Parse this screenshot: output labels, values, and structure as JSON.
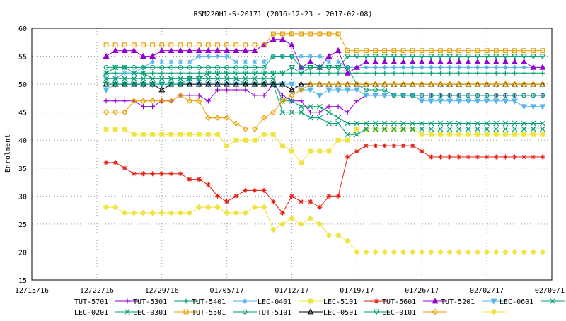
{
  "chart_data": {
    "type": "line",
    "title": "RSM220H1-S-20171 (2016-12-23 - 2017-02-08)",
    "ylabel": "Enrolment",
    "xlabel": "",
    "x_tick_labels": [
      "12/15/16",
      "12/22/16",
      "12/29/16",
      "01/05/17",
      "01/12/17",
      "01/19/17",
      "01/26/17",
      "02/02/17",
      "02/09/17"
    ],
    "xlim": [
      "2016-12-15",
      "2017-02-09"
    ],
    "ylim": [
      15,
      60
    ],
    "y_ticks": [
      15,
      20,
      25,
      30,
      35,
      40,
      45,
      50,
      55,
      60
    ],
    "grid": true,
    "legend_position": "bottom",
    "x": [
      "2016-12-23",
      "2016-12-24",
      "2016-12-25",
      "2016-12-26",
      "2016-12-27",
      "2016-12-28",
      "2016-12-29",
      "2016-12-30",
      "2016-12-31",
      "2017-01-01",
      "2017-01-02",
      "2017-01-03",
      "2017-01-04",
      "2017-01-05",
      "2017-01-06",
      "2017-01-07",
      "2017-01-08",
      "2017-01-09",
      "2017-01-10",
      "2017-01-11",
      "2017-01-12",
      "2017-01-13",
      "2017-01-14",
      "2017-01-15",
      "2017-01-16",
      "2017-01-17",
      "2017-01-18",
      "2017-01-19",
      "2017-01-20",
      "2017-01-21",
      "2017-01-22",
      "2017-01-23",
      "2017-01-24",
      "2017-01-25",
      "2017-01-26",
      "2017-01-27",
      "2017-01-28",
      "2017-01-29",
      "2017-01-30",
      "2017-01-31",
      "2017-02-01",
      "2017-02-02",
      "2017-02-03",
      "2017-02-04",
      "2017-02-05",
      "2017-02-06",
      "2017-02-07",
      "2017-02-08"
    ],
    "series": [
      {
        "name": "TUT-5701",
        "color": "#9400d3",
        "marker": "plus",
        "values": [
          47,
          47,
          47,
          47,
          46,
          46,
          47,
          47,
          48,
          48,
          48,
          47,
          49,
          49,
          49,
          49,
          48,
          48,
          50,
          48,
          47,
          47,
          45,
          45,
          46,
          46,
          45,
          47,
          48,
          48,
          48,
          48,
          48,
          48,
          48,
          48,
          48,
          48,
          48,
          48,
          48,
          48,
          48,
          48,
          48,
          48,
          48,
          48
        ]
      },
      {
        "name": "TUT-5301",
        "color": "#009e73",
        "marker": "plus",
        "values": [
          52,
          52,
          52,
          52,
          52,
          52,
          52,
          52,
          52,
          52,
          52,
          52,
          52,
          52,
          52,
          52,
          52,
          52,
          52,
          52,
          52,
          52,
          52,
          52,
          52,
          52,
          52,
          52,
          52,
          52,
          52,
          52,
          52,
          52,
          52,
          52,
          52,
          52,
          52,
          52,
          52,
          52,
          52,
          52,
          52,
          52,
          52,
          52
        ]
      },
      {
        "name": "TUT-5401",
        "color": "#56b4e9",
        "marker": "star",
        "values": [
          51,
          51,
          52,
          52,
          53,
          54,
          54,
          54,
          54,
          54,
          55,
          55,
          55,
          55,
          54,
          54,
          54,
          54,
          55,
          55,
          55,
          55,
          55,
          55,
          54,
          54,
          53,
          53,
          53,
          53,
          53,
          53,
          53,
          53,
          53,
          53,
          53,
          53,
          53,
          53,
          53,
          53,
          53,
          53,
          53,
          53,
          53,
          53
        ]
      },
      {
        "name": "LEC-0401",
        "color": "#f0e442",
        "marker": "square",
        "values": [
          42,
          42,
          42,
          41,
          41,
          41,
          41,
          41,
          41,
          41,
          41,
          41,
          41,
          39,
          40,
          40,
          40,
          41,
          41,
          39,
          38,
          36,
          38,
          38,
          38,
          40,
          40,
          42,
          42,
          42,
          42,
          42,
          42,
          42,
          41,
          41,
          41,
          41,
          41,
          41,
          41,
          41,
          41,
          41,
          41,
          41,
          41,
          41
        ]
      },
      {
        "name": "LEC-5101",
        "color": "#e51e10",
        "marker": "star",
        "values": [
          36,
          36,
          35,
          34,
          34,
          34,
          34,
          34,
          34,
          33,
          33,
          32,
          30,
          29,
          30,
          31,
          31,
          31,
          29,
          27,
          30,
          29,
          29,
          28,
          30,
          30,
          37,
          38,
          39,
          39,
          39,
          39,
          39,
          39,
          38,
          37,
          37,
          37,
          37,
          37,
          37,
          37,
          37,
          37,
          37,
          37,
          37,
          37
        ]
      },
      {
        "name": "TUT-5601",
        "color": "#9400d3",
        "marker": "triangle",
        "values": [
          55,
          56,
          56,
          56,
          55,
          55,
          56,
          56,
          56,
          56,
          56,
          56,
          56,
          56,
          56,
          56,
          56,
          57,
          58,
          58,
          57,
          53,
          54,
          53,
          55,
          56,
          52,
          53,
          54,
          54,
          54,
          54,
          54,
          54,
          54,
          54,
          54,
          54,
          54,
          54,
          54,
          54,
          54,
          54,
          54,
          54,
          53,
          53
        ]
      },
      {
        "name": "TUT-5201",
        "color": "#56b4e9",
        "marker": "triangle-down",
        "values": [
          49,
          50,
          50,
          50,
          50,
          50,
          50,
          50,
          50,
          50,
          50,
          50,
          50,
          50,
          50,
          50,
          50,
          50,
          50,
          50,
          50,
          49,
          49,
          48,
          49,
          49,
          49,
          49,
          48,
          48,
          48,
          48,
          48,
          48,
          47,
          47,
          47,
          47,
          47,
          47,
          47,
          47,
          47,
          47,
          47,
          46,
          46,
          46
        ]
      },
      {
        "name": "LEC-0601",
        "color": "#009e73",
        "marker": "x",
        "values": [
          51,
          51,
          51,
          51,
          51,
          51,
          51,
          51,
          51,
          51,
          51,
          51,
          51,
          51,
          51,
          50,
          50,
          50,
          50,
          45,
          45,
          45,
          44,
          44,
          43,
          43,
          41,
          41,
          42,
          42,
          42,
          42,
          42,
          42,
          42,
          42,
          42,
          42,
          42,
          42,
          42,
          42,
          42,
          42,
          42,
          42,
          42,
          42
        ]
      },
      {
        "name": "LEC-0201",
        "color": "#009e73",
        "marker": "x",
        "values": [
          52,
          53,
          53,
          52,
          52,
          51,
          51,
          51,
          51,
          51,
          51,
          51,
          51,
          51,
          51,
          51,
          51,
          51,
          51,
          47,
          47,
          46,
          46,
          46,
          45,
          44,
          43,
          43,
          43,
          43,
          43,
          43,
          43,
          43,
          43,
          43,
          43,
          43,
          43,
          43,
          43,
          43,
          43,
          43,
          43,
          43,
          43,
          43
        ]
      },
      {
        "name": "LEC-0301",
        "color": "#e69f00",
        "marker": "square",
        "values": [
          57,
          57,
          57,
          57,
          57,
          57,
          57,
          57,
          57,
          57,
          57,
          57,
          57,
          57,
          57,
          57,
          57,
          57,
          59,
          59,
          59,
          59,
          59,
          59,
          59,
          59,
          56,
          56,
          56,
          56,
          56,
          56,
          56,
          56,
          56,
          56,
          56,
          56,
          56,
          56,
          56,
          56,
          56,
          56,
          56,
          56,
          56,
          56
        ]
      },
      {
        "name": "TUT-5501",
        "color": "#009e73",
        "marker": "circle",
        "values": [
          53,
          53,
          53,
          53,
          53,
          53,
          53,
          53,
          53,
          53,
          53,
          53,
          53,
          53,
          53,
          53,
          53,
          53,
          55,
          55,
          55,
          53,
          53,
          53,
          53,
          53,
          53,
          50,
          49,
          49,
          49,
          48,
          48,
          48,
          48,
          48,
          48,
          48,
          48,
          48,
          48,
          48,
          48,
          48,
          48,
          48,
          48,
          48
        ]
      },
      {
        "name": "TUT-5101",
        "color": "#000000",
        "marker": "triangle",
        "values": [
          50,
          50,
          50,
          50,
          50,
          50,
          49,
          50,
          50,
          50,
          50,
          50,
          50,
          50,
          50,
          50,
          50,
          50,
          50,
          50,
          49,
          50,
          50,
          50,
          50,
          50,
          50,
          50,
          50,
          50,
          50,
          50,
          50,
          50,
          50,
          50,
          50,
          50,
          50,
          50,
          50,
          50,
          50,
          50,
          50,
          50,
          50,
          50
        ]
      },
      {
        "name": "LEC-0501",
        "color": "#009e73",
        "marker": "triangle-down",
        "values": [
          50,
          50,
          50,
          50,
          50,
          50,
          50,
          50,
          50,
          51,
          51,
          52,
          52,
          52,
          52,
          52,
          52,
          52,
          52,
          52,
          53,
          52,
          53,
          53,
          53,
          53,
          55,
          55,
          55,
          55,
          55,
          55,
          55,
          55,
          55,
          55,
          55,
          55,
          55,
          55,
          55,
          55,
          55,
          55,
          55,
          55,
          55,
          55
        ]
      },
      {
        "name": "LEC-0101",
        "color": "#e69f00",
        "marker": "diamond",
        "values": [
          45,
          45,
          45,
          47,
          47,
          47,
          47,
          47,
          48,
          47,
          47,
          44,
          44,
          44,
          43,
          42,
          42,
          44,
          45,
          47,
          48,
          49,
          50,
          50,
          50,
          50,
          50,
          50,
          50,
          50,
          50,
          50,
          50,
          50,
          50,
          50,
          50,
          50,
          50,
          50,
          50,
          50,
          50,
          50,
          50,
          50,
          50,
          50
        ]
      },
      {
        "name": "",
        "color": "#f0e442",
        "marker": "diamond",
        "values": [
          28,
          28,
          27,
          27,
          27,
          27,
          27,
          27,
          27,
          27,
          28,
          28,
          28,
          27,
          27,
          27,
          28,
          28,
          24,
          25,
          26,
          25,
          26,
          25,
          23,
          23,
          22,
          20,
          20,
          20,
          20,
          20,
          20,
          20,
          20,
          20,
          20,
          20,
          20,
          20,
          20,
          20,
          20,
          20,
          20,
          20,
          20,
          20
        ]
      }
    ]
  }
}
